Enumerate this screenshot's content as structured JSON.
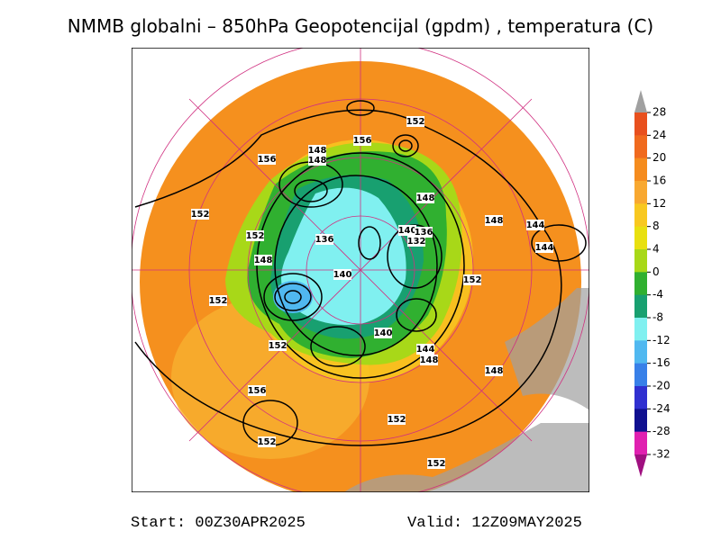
{
  "title": "NMMB globalni – 850hPa Geopotencijal (gpdm) , temperatura (C)",
  "start": "Start: 00Z30APR2025",
  "valid": "Valid: 12Z09MAY2025",
  "colorbar": {
    "ticks": [
      28,
      24,
      20,
      16,
      12,
      8,
      4,
      0,
      -4,
      -8,
      -12,
      -16,
      -20,
      -24,
      -28,
      -32
    ],
    "colors": [
      "#e8501e",
      "#f06a1e",
      "#f58c1e",
      "#f8a830",
      "#f8c820",
      "#e8e010",
      "#a8d818",
      "#30b030",
      "#18a070",
      "#80f0f0",
      "#50b8f0",
      "#3880e8",
      "#3030d0",
      "#101090",
      "#e020b0"
    ],
    "above_color": "#a0a0a0",
    "below_color": "#a01080"
  },
  "contour_labels": [
    "152",
    "156",
    "148",
    "156",
    "152",
    "152",
    "148",
    "136",
    "140",
    "140",
    "136",
    "148",
    "148",
    "144",
    "144",
    "152",
    "152",
    "140",
    "144",
    "148",
    "148",
    "152",
    "156",
    "152",
    "152",
    "152",
    "132",
    "148"
  ]
}
